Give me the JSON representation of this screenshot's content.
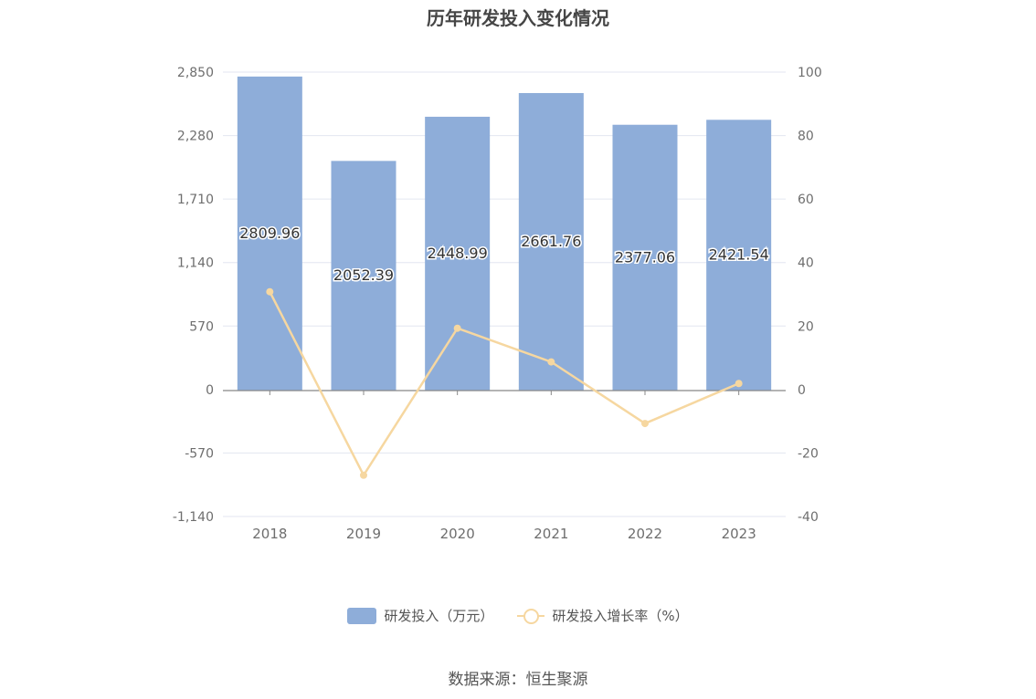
{
  "title": "历年研发投入变化情况",
  "legend": {
    "bar_label": "研发投入（万元）",
    "line_label": "研发投入增长率（%）"
  },
  "source": "数据来源：恒生聚源",
  "colors": {
    "bar": "#8eadd9",
    "line": "#f6d7a0",
    "grid": "#e3e6f0",
    "axis": "#888888"
  },
  "chart_data": {
    "type": "bar",
    "categories": [
      "2018",
      "2019",
      "2020",
      "2021",
      "2022",
      "2023"
    ],
    "series": [
      {
        "name": "研发投入（万元）",
        "type": "bar",
        "axis": "left",
        "values": [
          2809.96,
          2052.39,
          2448.99,
          2661.76,
          2377.06,
          2421.54
        ]
      },
      {
        "name": "研发投入增长率（%）",
        "type": "line",
        "axis": "right",
        "values": [
          30.8,
          -27.0,
          19.3,
          8.7,
          -10.7,
          1.9
        ]
      }
    ],
    "y_left": {
      "ticks": [
        -1140,
        -570,
        0,
        570,
        1140,
        1710,
        2280,
        2850
      ],
      "tick_labels": [
        "-1,140",
        "-570",
        "0",
        "570",
        "1,140",
        "1,710",
        "2,280",
        "2,850"
      ],
      "range": [
        -1140,
        2850
      ]
    },
    "y_right": {
      "ticks": [
        -40,
        -20,
        0,
        20,
        40,
        60,
        80,
        100
      ],
      "tick_labels": [
        "-40",
        "-20",
        "0",
        "20",
        "40",
        "60",
        "80",
        "100"
      ],
      "range": [
        -40,
        100
      ]
    },
    "data_labels": [
      "2809.96",
      "2052.39",
      "2448.99",
      "2661.76",
      "2377.06",
      "2421.54"
    ],
    "grid": true,
    "legend_position": "bottom"
  }
}
